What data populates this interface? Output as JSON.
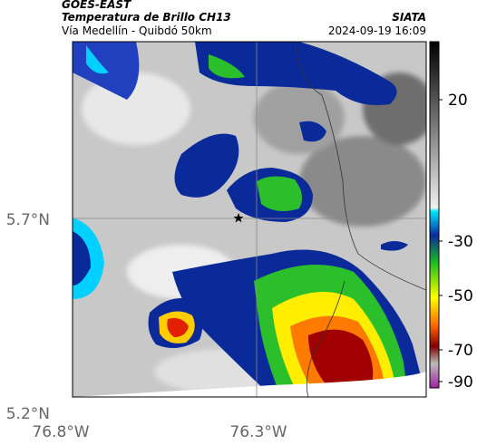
{
  "header": {
    "title": "GOES-EAST",
    "subtitle": "Temperatura de Brillo CH13",
    "location": "Vía Medellín - Quibdó 50km",
    "source": "SIATA",
    "timestamp": "2024-09-19 16:09"
  },
  "map": {
    "xticks": [
      "76.8°W",
      "76.3°W"
    ],
    "yticks": [
      "5.7°N",
      "5.2°N"
    ]
  },
  "colorbar": {
    "ticks": [
      20,
      -30,
      -50,
      -70,
      -90
    ]
  }
}
